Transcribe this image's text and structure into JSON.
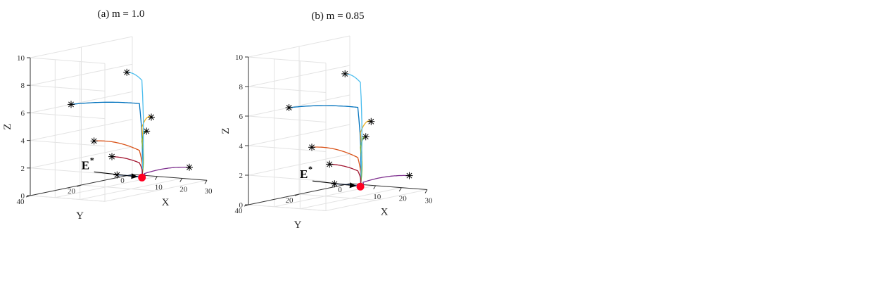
{
  "chart_data": [
    {
      "type": "line",
      "title": "(a) m = 1.0",
      "xlabel": "X",
      "ylabel": "Y",
      "zlabel": "Z",
      "xlim": [
        0,
        30
      ],
      "ylim": [
        0,
        40
      ],
      "zlim": [
        0,
        10
      ],
      "x_ticks": [
        "10",
        "20",
        "30"
      ],
      "y_ticks": [
        "0",
        "20",
        "40"
      ],
      "z_ticks": [
        "0",
        "2",
        "4",
        "6",
        "8",
        "10"
      ],
      "grid": true,
      "equilibrium": {
        "label": "E",
        "sup": "*",
        "x": 9,
        "y": 5,
        "z": 0.1,
        "color": "#ff0022"
      },
      "series": [
        {
          "color": "#0072bd",
          "start": [
            0,
            24,
            6
          ],
          "knee": [
            9,
            6,
            5.5
          ],
          "end": [
            9,
            5,
            0.1
          ]
        },
        {
          "color": "#d95319",
          "start": [
            0,
            15,
            3
          ],
          "knee": [
            9,
            6,
            2.1
          ],
          "end": [
            9,
            5,
            0.1
          ]
        },
        {
          "color": "#edb120",
          "start": [
            22,
            14,
            5
          ],
          "knee": [
            10,
            6,
            3.8
          ],
          "end": [
            9,
            5,
            0.1
          ]
        },
        {
          "color": "#7e2f8e",
          "start": [
            26,
            3,
            1
          ],
          "knee": [
            10,
            5,
            0.4
          ],
          "end": [
            9,
            5,
            0.1
          ]
        },
        {
          "color": "#77ac30",
          "start": [
            17,
            11,
            3.8
          ],
          "knee": [
            10,
            6,
            2.8
          ],
          "end": [
            9,
            5,
            0.1
          ]
        },
        {
          "color": "#4dbeee",
          "start": [
            6,
            8,
            7.8
          ],
          "knee": [
            10,
            6,
            7.2
          ],
          "end": [
            9,
            5,
            0.1
          ]
        },
        {
          "color": "#a2142f",
          "start": [
            0,
            8,
            1.6
          ],
          "knee": [
            9,
            6,
            1.2
          ],
          "end": [
            9,
            5,
            0.1
          ]
        },
        {
          "color": "#2a5db0",
          "start": [
            0,
            6,
            0.2
          ],
          "knee": [
            8,
            5,
            0.15
          ],
          "end": [
            9,
            5,
            0.1
          ]
        }
      ]
    },
    {
      "type": "line",
      "title": "(b) m = 0.85",
      "xlabel": "X",
      "ylabel": "Y",
      "zlabel": "Z",
      "xlim": [
        0,
        30
      ],
      "ylim": [
        0,
        40
      ],
      "zlim": [
        0,
        10
      ],
      "x_ticks": [
        "10",
        "20",
        "30"
      ],
      "y_ticks": [
        "0",
        "20",
        "40"
      ],
      "z_ticks": [
        "0",
        "2",
        "4",
        "6",
        "8",
        "10"
      ],
      "grid": true,
      "equilibrium": {
        "label": "E",
        "sup": "*",
        "x": 9,
        "y": 5,
        "z": 0.1,
        "color": "#ff0022"
      },
      "series": [
        {
          "color": "#0072bd",
          "start": [
            0,
            24,
            6
          ],
          "knee": [
            9,
            6,
            5.5
          ],
          "end": [
            9,
            5,
            0.1
          ]
        },
        {
          "color": "#d95319",
          "start": [
            0,
            15,
            3
          ],
          "knee": [
            9,
            6,
            2.1
          ],
          "end": [
            9,
            5,
            0.1
          ]
        },
        {
          "color": "#edb120",
          "start": [
            22,
            14,
            5
          ],
          "knee": [
            10,
            6,
            3.8
          ],
          "end": [
            9,
            5,
            0.1
          ]
        },
        {
          "color": "#7e2f8e",
          "start": [
            26,
            3,
            1
          ],
          "knee": [
            10,
            5,
            0.4
          ],
          "end": [
            9,
            5,
            0.1
          ]
        },
        {
          "color": "#77ac30",
          "start": [
            17,
            11,
            3.8
          ],
          "knee": [
            10,
            6,
            2.8
          ],
          "end": [
            9,
            5,
            0.1
          ]
        },
        {
          "color": "#4dbeee",
          "start": [
            6,
            8,
            7.8
          ],
          "knee": [
            10,
            6,
            7.2
          ],
          "end": [
            9,
            5,
            0.1
          ]
        },
        {
          "color": "#a2142f",
          "start": [
            0,
            8,
            1.6
          ],
          "knee": [
            9,
            6,
            1.2
          ],
          "end": [
            9,
            5,
            0.1
          ]
        },
        {
          "color": "#2a5db0",
          "start": [
            0,
            6,
            0.2
          ],
          "knee": [
            8,
            5,
            0.15
          ],
          "end": [
            9,
            5,
            0.1
          ]
        }
      ]
    }
  ]
}
